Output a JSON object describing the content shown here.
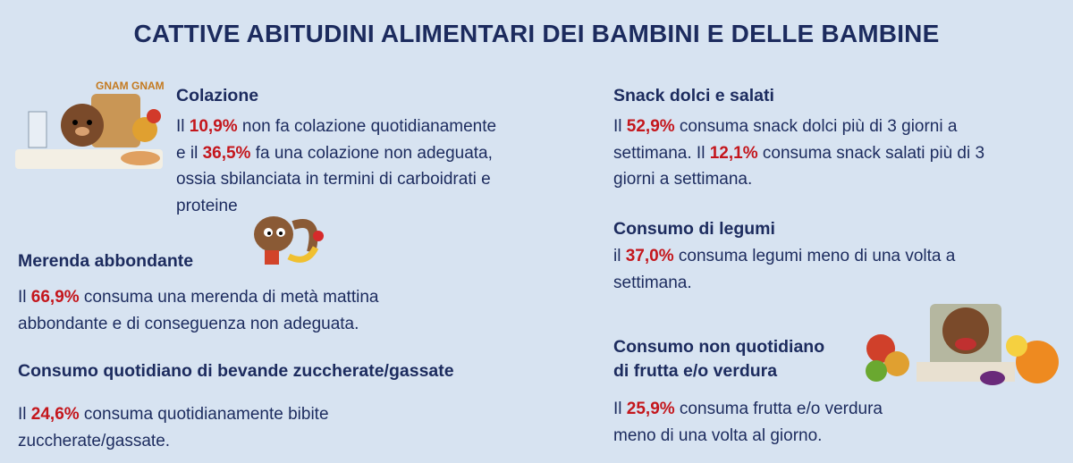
{
  "title": "CATTIVE ABITUDINI ALIMENTARI DEI BAMBINI E DELLE BAMBINE",
  "colors": {
    "background": "#d7e3f1",
    "text": "#1c2b5e",
    "highlight": "#c4161c"
  },
  "illustration_text": "GNAM GNAM",
  "sections": [
    {
      "heading": [
        "Colazione"
      ],
      "body": [
        [
          {
            "t": "Il "
          },
          {
            "t": "10,9%",
            "hl": true
          },
          {
            "t": " non fa colazione quotidianamente"
          }
        ],
        [
          {
            "t": "e il "
          },
          {
            "t": "36,5%",
            "hl": true
          },
          {
            "t": " fa una colazione non adeguata,"
          }
        ],
        [
          {
            "t": "ossia sbilanciata in termini di carboidrati e"
          }
        ],
        [
          {
            "t": "proteine"
          }
        ]
      ]
    },
    {
      "heading": [
        "Merenda abbondante"
      ],
      "body": [
        [
          {
            "t": "Il "
          },
          {
            "t": "66,9%",
            "hl": true
          },
          {
            "t": " consuma una merenda di metà mattina"
          }
        ],
        [
          {
            "t": "abbondante e di conseguenza non adeguata."
          }
        ]
      ]
    },
    {
      "heading": [
        "Consumo quotidiano di bevande zuccherate/gassate"
      ],
      "body": [
        [
          {
            "t": "Il "
          },
          {
            "t": "24,6%",
            "hl": true
          },
          {
            "t": " consuma quotidianamente bibite"
          }
        ],
        [
          {
            "t": "zuccherate/gassate."
          }
        ]
      ]
    },
    {
      "heading": [
        "Snack dolci e salati"
      ],
      "body": [
        [
          {
            "t": "Il "
          },
          {
            "t": "52,9%",
            "hl": true
          },
          {
            "t": " consuma snack dolci più di 3 giorni a"
          }
        ],
        [
          {
            "t": "settimana. Il "
          },
          {
            "t": "12,1%",
            "hl": true
          },
          {
            "t": " consuma snack salati più di 3"
          }
        ],
        [
          {
            "t": "giorni a settimana."
          }
        ]
      ]
    },
    {
      "heading": [
        "Consumo di legumi"
      ],
      "body": [
        [
          {
            "t": "il "
          },
          {
            "t": "37,0%",
            "hl": true
          },
          {
            "t": " consuma legumi meno di una volta a"
          }
        ],
        [
          {
            "t": "settimana."
          }
        ]
      ]
    },
    {
      "heading": [
        "Consumo non quotidiano",
        "di frutta e/o verdura"
      ],
      "body": [
        [
          {
            "t": "Il "
          },
          {
            "t": "25,9%",
            "hl": true
          },
          {
            "t": " consuma frutta e/o verdura"
          }
        ],
        [
          {
            "t": "meno di una volta al giorno."
          }
        ]
      ]
    }
  ]
}
